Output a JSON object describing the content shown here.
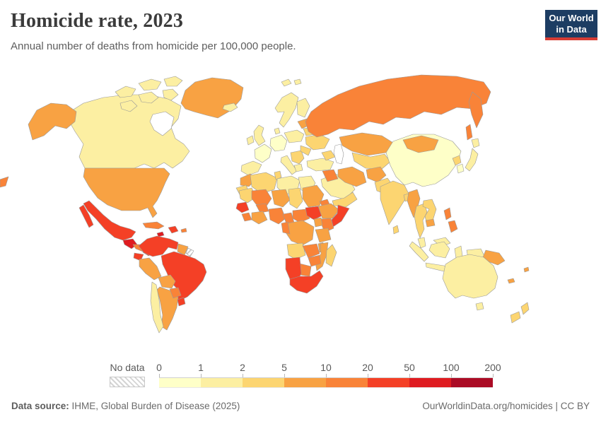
{
  "header": {
    "title": "Homicide rate, 2023",
    "subtitle": "Annual number of deaths from homicide per 100,000 people.",
    "logo": {
      "line1": "Our World",
      "line2": "in Data",
      "bg": "#1d3d63",
      "accent": "#d73c34"
    }
  },
  "chart_data": {
    "type": "choropleth",
    "title": "Homicide rate, 2023",
    "unit": "Annual number of deaths from homicide per 100,000 people",
    "legend_ticks": [
      "0",
      "1",
      "2",
      "5",
      "10",
      "20",
      "50",
      "100",
      "200"
    ],
    "bin_colors": [
      "#feffc8",
      "#fcefa2",
      "#fcd571",
      "#f8a243",
      "#f98338",
      "#f44026",
      "#df1b20",
      "#ab0b25"
    ],
    "no_data_label": "No data",
    "region_bins": {
      "greenland": 3,
      "canada": 1,
      "canada-arctic": 1,
      "svalbard": 1,
      "alaska": 3,
      "usa": 3,
      "mexico": 5,
      "guatemala": 6,
      "central-america": 4,
      "panama-costa-rica": 5,
      "cuba": 4,
      "hispaniola": 5,
      "jamaica": 6,
      "puerto-rico": 4,
      "colombia-venezuela": 5,
      "guyana-suriname": 3,
      "french-guiana": "no_data",
      "brazil": 5,
      "ecuador": 5,
      "peru": 3,
      "bolivia": 3,
      "argentina": 3,
      "chile": 1,
      "paraguay": 4,
      "uruguay": 5,
      "iceland": 1,
      "uk": 1,
      "ireland": 1,
      "norway-sweden": 1,
      "finland": 1,
      "denmark": 1,
      "france": 0,
      "iberia": 1,
      "germany-central": 0,
      "italy": 1,
      "balkans": 2,
      "greece": 1,
      "poland-czech": 1,
      "baltics": 3,
      "belarus": 2,
      "ukraine": 2,
      "romania": 2,
      "turkey": 1,
      "russia": 4,
      "kamchatka": 4,
      "sakhalin": 4,
      "russia-far-west": 4,
      "kazakhstan": 3,
      "central-asia": 2,
      "caucasus": 2,
      "china": 0,
      "mongolia": 3,
      "japan": 1,
      "korea-north": 2,
      "korea-south": 0,
      "saudi-arabia": 1,
      "yemen-oman": 2,
      "iraq": 4,
      "iran": 3,
      "afghanistan": 3,
      "pakistan": 2,
      "india": 2,
      "sri-lanka": 2,
      "bangladesh": 2,
      "myanmar": 3,
      "thailand": 2,
      "vietnam-laos": 2,
      "cambodia": 3,
      "malaysia": 1,
      "malaysia-borneo": 1,
      "indonesia-sumatra": 1,
      "indonesia-java": 1,
      "indonesia-borneo": 1,
      "indonesia-sulawesi": 1,
      "indonesia-papua": 1,
      "papua-new-guinea": 3,
      "philippines": 4,
      "morocco": 3,
      "western-sahara": 2,
      "algeria": 2,
      "tunisia": 2,
      "libya": 1,
      "egypt": 1,
      "mauritania": 2,
      "mali": 4,
      "niger": 3,
      "chad": 2,
      "sudan": 3,
      "eritrea": 4,
      "senegal-guinea": 5,
      "sierra-liberia": 4,
      "burkina-faso": 4,
      "ivory-ghana": 3,
      "nigeria": 4,
      "cameroon": 4,
      "central-african-republic": 4,
      "south-sudan": 5,
      "ethiopia": 3,
      "somalia": 5,
      "kenya": 4,
      "uganda": 3,
      "drc": 3,
      "congo-gabon": 4,
      "tanzania": 3,
      "angola": 2,
      "zambia": 4,
      "malawi": 3,
      "mozambique": 3,
      "zimbabwe": 4,
      "botswana": 4,
      "namibia": 5,
      "south-africa": 5,
      "madagascar": 2,
      "australia": 1,
      "tasmania": 1,
      "new-zealand": 2,
      "fiji": 3,
      "new-caledonia": 3
    }
  },
  "footer": {
    "source_label": "Data source:",
    "source": "IHME, Global Burden of Disease (2025)",
    "link": "OurWorldinData.org/homicides | CC BY"
  }
}
